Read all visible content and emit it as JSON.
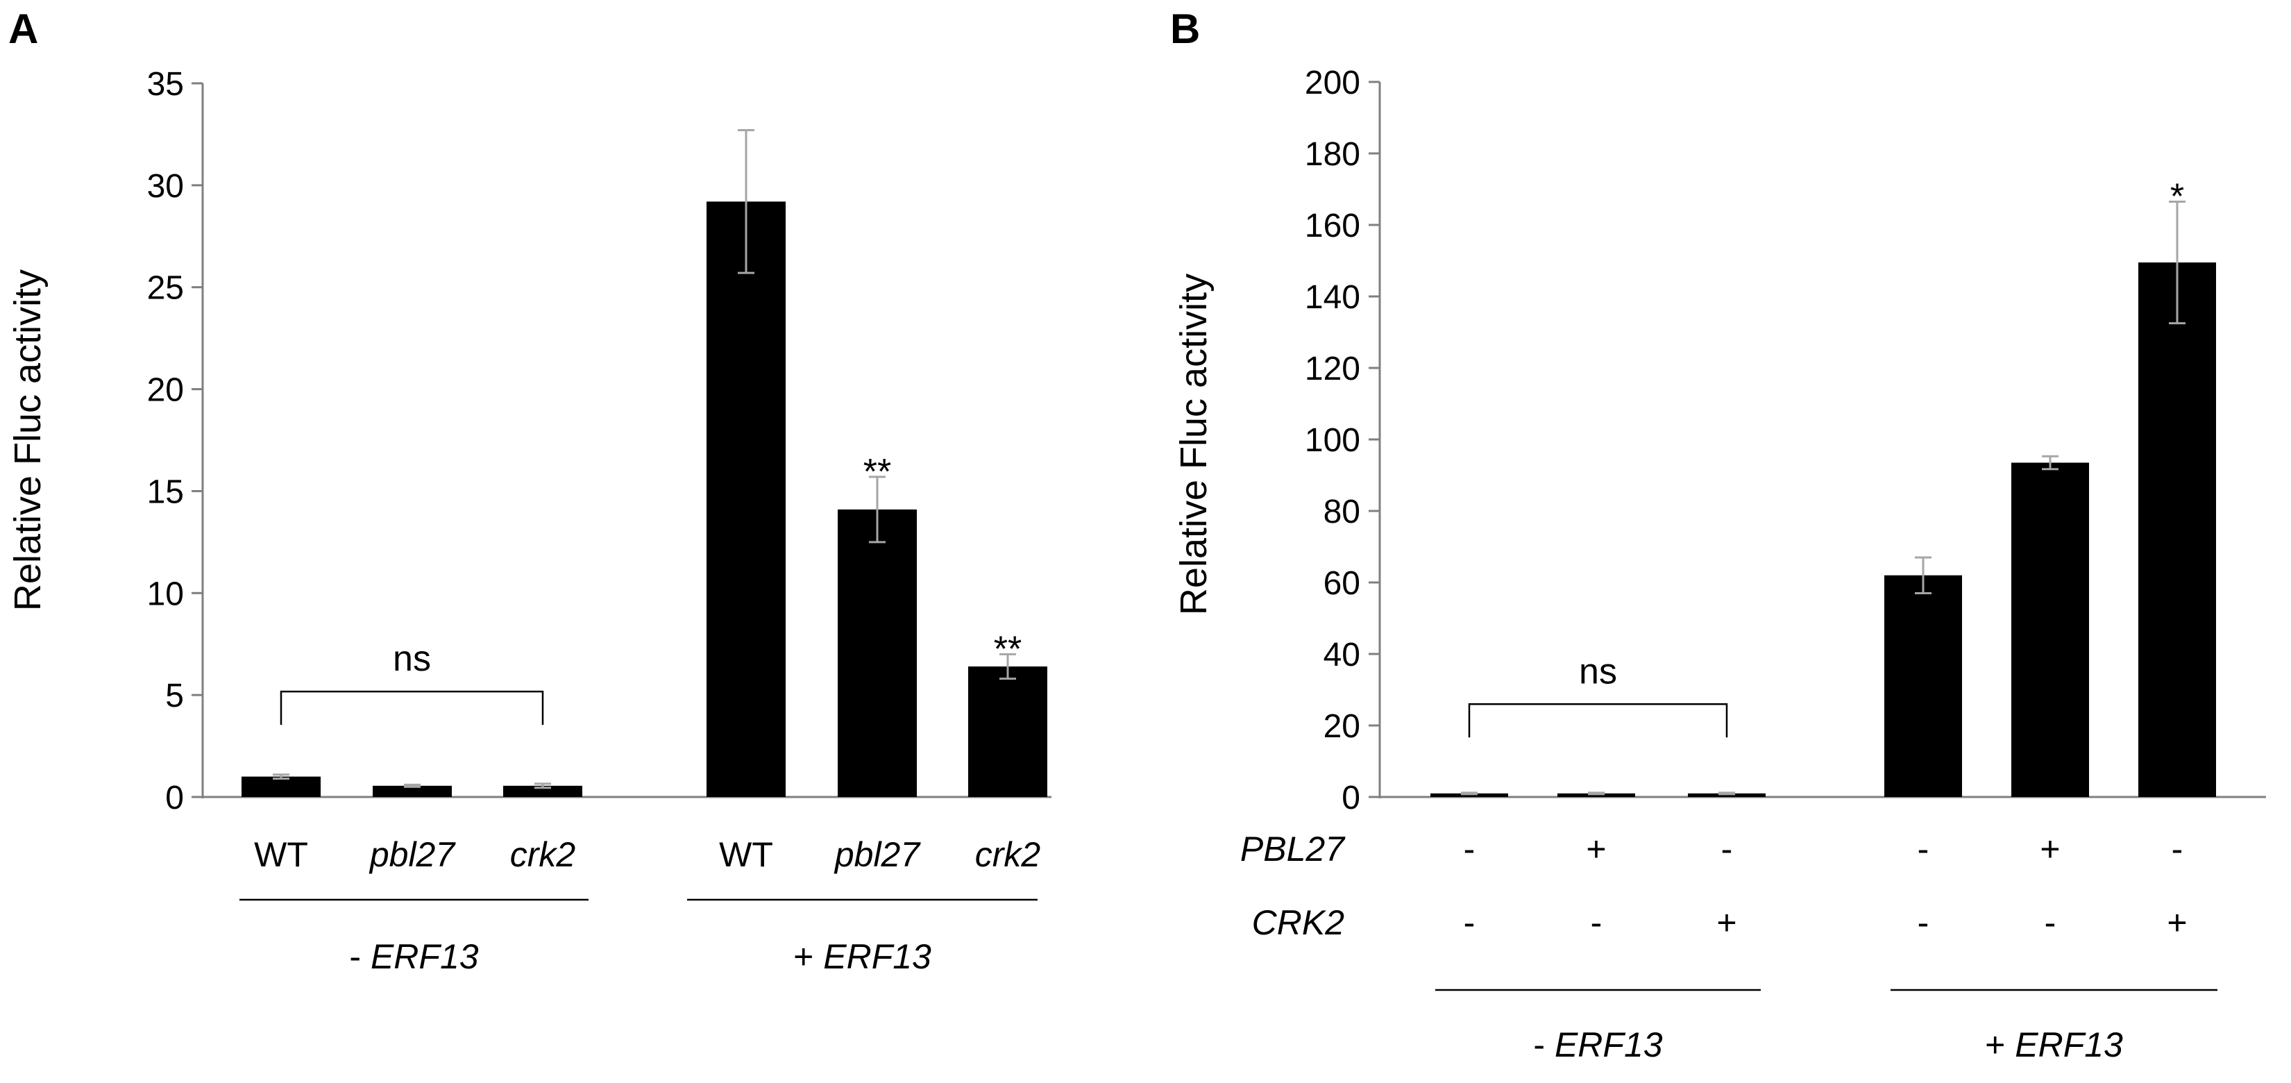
{
  "colors": {
    "bar": "#000000",
    "error_bar": "#a6a6a6",
    "axis": "#7f7f7f",
    "text": "#000000"
  },
  "chart_data": [
    {
      "panel": "A",
      "type": "bar",
      "ylabel": "Relative Fluc activity",
      "ylim": [
        0,
        35
      ],
      "yticks": [
        0,
        5,
        10,
        15,
        20,
        25,
        30,
        35
      ],
      "categories": [
        "WT",
        "pbl27",
        "crk2",
        "WT",
        "pbl27",
        "crk2"
      ],
      "italic_categories": [
        false,
        true,
        true,
        false,
        true,
        true
      ],
      "values": [
        1.0,
        0.55,
        0.55,
        29.2,
        14.1,
        6.4
      ],
      "errors": [
        0.1,
        0.05,
        0.1,
        3.5,
        1.6,
        0.6
      ],
      "significance": [
        "",
        "",
        "",
        "",
        "**",
        "**"
      ],
      "group_labels": [
        {
          "prefix": "- ",
          "gene": "ERF13",
          "bars": [
            0,
            2
          ]
        },
        {
          "prefix": "+ ",
          "gene": "ERF13",
          "bars": [
            3,
            5
          ]
        }
      ],
      "bracket": {
        "label": "ns",
        "from": 0,
        "to": 2,
        "y": 5
      }
    },
    {
      "panel": "B",
      "type": "bar",
      "ylabel": "Relative Fluc activity",
      "ylim": [
        0,
        200
      ],
      "yticks": [
        0,
        20,
        40,
        60,
        80,
        100,
        120,
        140,
        160,
        180,
        200
      ],
      "values": [
        1.0,
        1.0,
        1.0,
        62.0,
        93.5,
        149.5
      ],
      "errors": [
        0.2,
        0.2,
        0.2,
        5.0,
        1.8,
        17.0
      ],
      "significance": [
        "",
        "",
        "",
        "",
        "",
        "*"
      ],
      "condition_rows": [
        {
          "name": "PBL27",
          "marks": [
            "-",
            "+",
            "-",
            "-",
            "+",
            "-"
          ]
        },
        {
          "name": "CRK2",
          "marks": [
            "-",
            "-",
            "+",
            "-",
            "-",
            "+"
          ]
        }
      ],
      "group_labels": [
        {
          "prefix": "- ",
          "gene": "ERF13",
          "bars": [
            0,
            2
          ]
        },
        {
          "prefix": "+ ",
          "gene": "ERF13",
          "bars": [
            3,
            5
          ]
        }
      ],
      "bracket": {
        "label": "ns",
        "from": 0,
        "to": 2,
        "y": 25
      }
    }
  ]
}
